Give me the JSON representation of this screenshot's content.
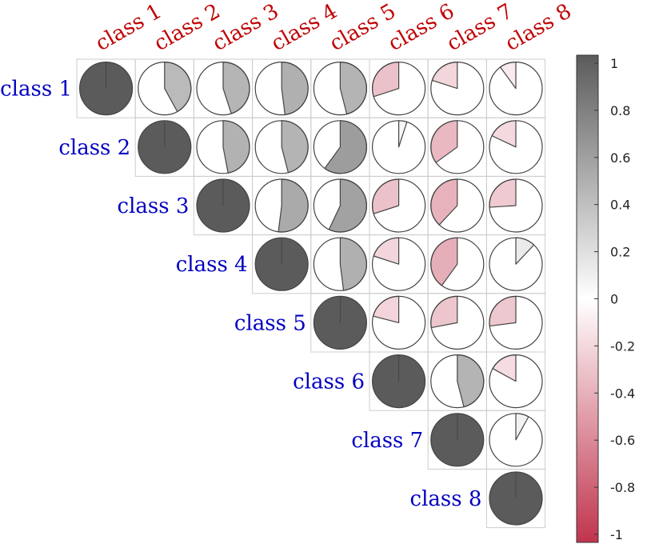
{
  "chart_data": {
    "type": "corrplot-pie",
    "variables": [
      "class 1",
      "class 2",
      "class 3",
      "class 4",
      "class 5",
      "class 6",
      "class 7",
      "class 8"
    ],
    "matrix": [
      [
        1.0,
        0.42,
        0.45,
        0.48,
        0.46,
        -0.3,
        -0.2,
        -0.1
      ],
      [
        0.42,
        1.0,
        0.47,
        0.46,
        0.6,
        0.05,
        -0.35,
        -0.18
      ],
      [
        0.45,
        0.47,
        1.0,
        0.52,
        0.57,
        -0.3,
        -0.38,
        -0.26
      ],
      [
        0.48,
        0.46,
        0.52,
        1.0,
        0.48,
        -0.2,
        -0.4,
        0.12
      ],
      [
        0.46,
        0.6,
        0.57,
        0.48,
        1.0,
        -0.21,
        -0.28,
        -0.27
      ],
      [
        -0.3,
        0.05,
        -0.3,
        -0.2,
        -0.21,
        1.0,
        0.46,
        -0.17
      ],
      [
        -0.2,
        -0.35,
        -0.38,
        -0.4,
        -0.28,
        0.46,
        1.0,
        0.08
      ],
      [
        -0.1,
        -0.18,
        -0.26,
        0.12,
        -0.27,
        -0.17,
        0.08,
        1.0
      ]
    ],
    "triangle": "upper",
    "colorbar": {
      "range": [
        -1,
        1
      ],
      "ticks": [
        1,
        0.8,
        0.6,
        0.4,
        0.2,
        0,
        -0.2,
        -0.4,
        -0.6,
        -0.8,
        -1
      ],
      "tick_labels": [
        "1",
        "0.8",
        "0.6",
        "0.4",
        "0.2",
        "0",
        "-0.2",
        "-0.4",
        "-0.6",
        "-0.8",
        "-1"
      ]
    },
    "colors": {
      "positive": "#5b5b5b",
      "zero": "#ffffff",
      "negative": "#c0344d",
      "column_label": "#c00000",
      "row_label": "#0000c0",
      "grid": "#cccccc",
      "circle_border": "#444444"
    }
  }
}
